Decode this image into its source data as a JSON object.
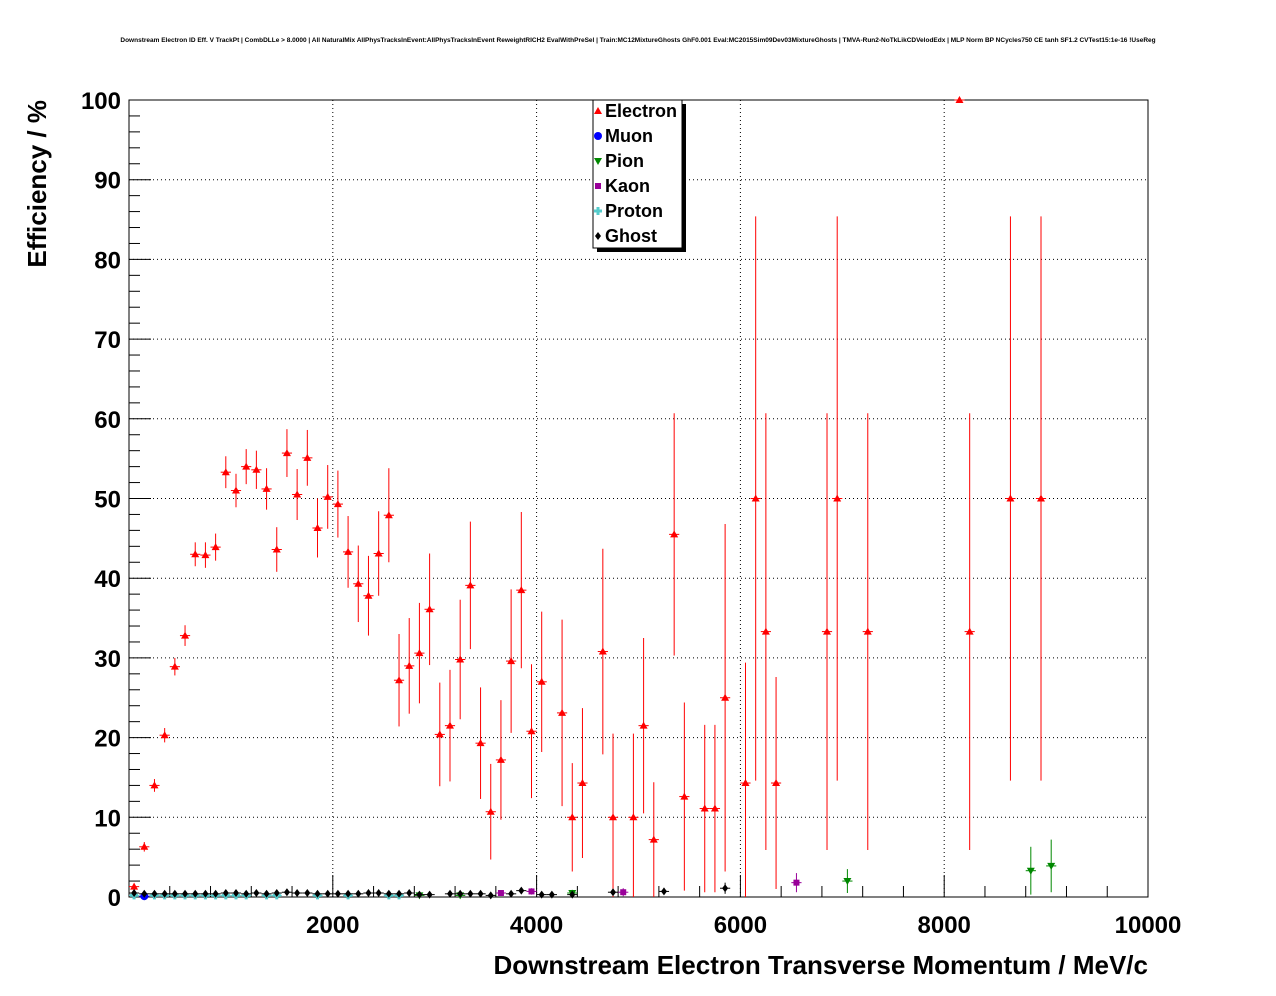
{
  "chart_data": {
    "type": "scatter",
    "title": "Downstream Electron ID Eff. V TrackPt | CombDLLe > 8.0000 | All NaturalMix AllPhysTracksInEvent:AllPhysTracksInEvent ReweightRICH2 EvalWithPreSel | Train:MC12MixtureGhosts GhF0.001 Eval:MC2015Sim09Dev03MixtureGhosts | TMVA-Run2-NoTkLikCDVelodEdx | MLP Norm BP NCycles750 CE tanh SF1.2 CVTest15:1e-16 !UseReg",
    "xlabel": "Downstream Electron Transverse Momentum / MeV/c",
    "ylabel": "Efficiency / %",
    "xlim": [
      0,
      10000
    ],
    "ylim": [
      0,
      100
    ],
    "xticks": [
      2000,
      4000,
      6000,
      8000,
      10000
    ],
    "yticks": [
      0,
      10,
      20,
      30,
      40,
      50,
      60,
      70,
      80,
      90,
      100
    ],
    "grid": true,
    "legend_position": "top-center",
    "series": [
      {
        "name": "Electron",
        "color": "#ff0000",
        "marker": "triangle-up",
        "points": [
          {
            "x": 50,
            "y": 1.3,
            "err": 0.4
          },
          {
            "x": 150,
            "y": 6.3,
            "err": 0.6
          },
          {
            "x": 250,
            "y": 14.0,
            "err": 0.8
          },
          {
            "x": 350,
            "y": 20.3,
            "err": 0.9
          },
          {
            "x": 450,
            "y": 28.9,
            "err": 1.1
          },
          {
            "x": 550,
            "y": 32.8,
            "err": 1.3
          },
          {
            "x": 650,
            "y": 43.0,
            "err": 1.5
          },
          {
            "x": 750,
            "y": 42.9,
            "err": 1.6
          },
          {
            "x": 850,
            "y": 43.9,
            "err": 1.7
          },
          {
            "x": 950,
            "y": 53.3,
            "err": 2.0
          },
          {
            "x": 1050,
            "y": 51.0,
            "err": 2.1
          },
          {
            "x": 1150,
            "y": 54.0,
            "err": 2.2
          },
          {
            "x": 1250,
            "y": 53.6,
            "err": 2.4
          },
          {
            "x": 1350,
            "y": 51.2,
            "err": 2.6
          },
          {
            "x": 1450,
            "y": 43.6,
            "err": 2.8
          },
          {
            "x": 1550,
            "y": 55.7,
            "err": 3.0
          },
          {
            "x": 1650,
            "y": 50.5,
            "err": 3.2
          },
          {
            "x": 1750,
            "y": 55.1,
            "err": 3.5
          },
          {
            "x": 1850,
            "y": 46.3,
            "err": 3.7
          },
          {
            "x": 1950,
            "y": 50.2,
            "err": 4.0
          },
          {
            "x": 2050,
            "y": 49.3,
            "err": 4.2
          },
          {
            "x": 2150,
            "y": 43.3,
            "err": 4.5
          },
          {
            "x": 2250,
            "y": 39.3,
            "err": 4.8
          },
          {
            "x": 2350,
            "y": 37.8,
            "err": 5.0
          },
          {
            "x": 2450,
            "y": 43.1,
            "err": 5.3
          },
          {
            "x": 2550,
            "y": 47.9,
            "err": 5.9
          },
          {
            "x": 2650,
            "y": 27.2,
            "err": 5.8
          },
          {
            "x": 2750,
            "y": 29.0,
            "err": 6.0
          },
          {
            "x": 2850,
            "y": 30.6,
            "err": 6.3
          },
          {
            "x": 2950,
            "y": 36.1,
            "err": 7.0
          },
          {
            "x": 3050,
            "y": 20.4,
            "err": 6.5
          },
          {
            "x": 3150,
            "y": 21.5,
            "err": 7.0
          },
          {
            "x": 3250,
            "y": 29.8,
            "err": 7.5
          },
          {
            "x": 3350,
            "y": 39.1,
            "err": 8.0
          },
          {
            "x": 3450,
            "y": 19.3,
            "err": 7.0
          },
          {
            "x": 3550,
            "y": 10.7,
            "err": 6.0
          },
          {
            "x": 3650,
            "y": 17.2,
            "err": 7.5
          },
          {
            "x": 3750,
            "y": 29.6,
            "err": 9.0
          },
          {
            "x": 3850,
            "y": 38.5,
            "err": 9.8
          },
          {
            "x": 3950,
            "y": 20.8,
            "err": 8.4
          },
          {
            "x": 4050,
            "y": 27.0,
            "err": 8.8
          },
          {
            "x": 4250,
            "y": 23.1,
            "err": 11.7
          },
          {
            "x": 4350,
            "y": 10.0,
            "err": 6.8
          },
          {
            "x": 4450,
            "y": 14.3,
            "err": 9.4
          },
          {
            "x": 4650,
            "y": 30.8,
            "err": 12.9
          },
          {
            "x": 4750,
            "y": 10.0,
            "err": 10.5
          },
          {
            "x": 4950,
            "y": 10.0,
            "err": 10.5
          },
          {
            "x": 5050,
            "y": 21.5,
            "err": 11.0
          },
          {
            "x": 5150,
            "y": 7.2,
            "err": 7.2
          },
          {
            "x": 5350,
            "y": 45.5,
            "err": 15.2
          },
          {
            "x": 5450,
            "y": 12.6,
            "err": 11.8
          },
          {
            "x": 5650,
            "y": 11.1,
            "err": 10.5
          },
          {
            "x": 5750,
            "y": 11.1,
            "err": 10.5
          },
          {
            "x": 5850,
            "y": 25.0,
            "err": 21.8
          },
          {
            "x": 6050,
            "y": 14.3,
            "err": 15.1
          },
          {
            "x": 6150,
            "y": 50.0,
            "err": 35.4
          },
          {
            "x": 6250,
            "y": 33.3,
            "err": 27.4
          },
          {
            "x": 6350,
            "y": 14.3,
            "err": 13.3
          },
          {
            "x": 6850,
            "y": 33.3,
            "err": 27.4
          },
          {
            "x": 6950,
            "y": 50.0,
            "err": 35.4
          },
          {
            "x": 7250,
            "y": 33.3,
            "err": 27.4
          },
          {
            "x": 8150,
            "y": 100.0,
            "err": 0
          },
          {
            "x": 8250,
            "y": 33.3,
            "err": 27.4
          },
          {
            "x": 8650,
            "y": 50.0,
            "err": 35.4
          },
          {
            "x": 8950,
            "y": 50.0,
            "err": 35.4
          }
        ]
      },
      {
        "name": "Muon",
        "color": "#0000ff",
        "marker": "circle",
        "points": [
          {
            "x": 150,
            "y": 0.1,
            "err": 0
          }
        ]
      },
      {
        "name": "Pion",
        "color": "#008800",
        "marker": "triangle-down",
        "points": [
          {
            "x": 2850,
            "y": 0.2,
            "err": 0.2
          },
          {
            "x": 3250,
            "y": 0.2,
            "err": 0.2
          },
          {
            "x": 4350,
            "y": 0.5,
            "err": 0.4
          },
          {
            "x": 7050,
            "y": 2.0,
            "err": 1.5
          },
          {
            "x": 8850,
            "y": 3.3,
            "err": 3.0
          },
          {
            "x": 9050,
            "y": 3.9,
            "err": 3.3
          }
        ]
      },
      {
        "name": "Kaon",
        "color": "#990099",
        "marker": "square",
        "points": [
          {
            "x": 3650,
            "y": 0.5,
            "err": 0.3
          },
          {
            "x": 3950,
            "y": 0.7,
            "err": 0.4
          },
          {
            "x": 4850,
            "y": 0.6,
            "err": 0.5
          },
          {
            "x": 6550,
            "y": 1.8,
            "err": 1.2
          }
        ]
      },
      {
        "name": "Proton",
        "color": "#55cccc",
        "marker": "cross",
        "points": [
          {
            "x": 50,
            "y": 0.2,
            "err": 0
          },
          {
            "x": 250,
            "y": 0.2,
            "err": 0
          },
          {
            "x": 350,
            "y": 0.2,
            "err": 0
          },
          {
            "x": 450,
            "y": 0.2,
            "err": 0
          },
          {
            "x": 550,
            "y": 0.2,
            "err": 0
          },
          {
            "x": 650,
            "y": 0.2,
            "err": 0
          },
          {
            "x": 750,
            "y": 0.2,
            "err": 0
          },
          {
            "x": 850,
            "y": 0.2,
            "err": 0
          },
          {
            "x": 950,
            "y": 0.2,
            "err": 0
          },
          {
            "x": 1050,
            "y": 0.2,
            "err": 0
          },
          {
            "x": 1150,
            "y": 0.2,
            "err": 0
          },
          {
            "x": 1350,
            "y": 0.2,
            "err": 0
          },
          {
            "x": 1450,
            "y": 0.2,
            "err": 0
          },
          {
            "x": 1850,
            "y": 0.2,
            "err": 0
          },
          {
            "x": 2150,
            "y": 0.2,
            "err": 0
          },
          {
            "x": 2550,
            "y": 0.2,
            "err": 0
          },
          {
            "x": 2650,
            "y": 0.2,
            "err": 0
          }
        ]
      },
      {
        "name": "Ghost",
        "color": "#000000",
        "marker": "diamond",
        "points": [
          {
            "x": 50,
            "y": 0.5,
            "err": 0
          },
          {
            "x": 150,
            "y": 0.4,
            "err": 0
          },
          {
            "x": 250,
            "y": 0.4,
            "err": 0
          },
          {
            "x": 350,
            "y": 0.4,
            "err": 0
          },
          {
            "x": 450,
            "y": 0.4,
            "err": 0
          },
          {
            "x": 550,
            "y": 0.4,
            "err": 0
          },
          {
            "x": 650,
            "y": 0.4,
            "err": 0
          },
          {
            "x": 750,
            "y": 0.4,
            "err": 0
          },
          {
            "x": 850,
            "y": 0.4,
            "err": 0
          },
          {
            "x": 950,
            "y": 0.5,
            "err": 0
          },
          {
            "x": 1050,
            "y": 0.5,
            "err": 0
          },
          {
            "x": 1150,
            "y": 0.4,
            "err": 0
          },
          {
            "x": 1250,
            "y": 0.5,
            "err": 0
          },
          {
            "x": 1350,
            "y": 0.4,
            "err": 0
          },
          {
            "x": 1450,
            "y": 0.5,
            "err": 0
          },
          {
            "x": 1550,
            "y": 0.6,
            "err": 0
          },
          {
            "x": 1650,
            "y": 0.5,
            "err": 0
          },
          {
            "x": 1750,
            "y": 0.5,
            "err": 0
          },
          {
            "x": 1850,
            "y": 0.4,
            "err": 0
          },
          {
            "x": 1950,
            "y": 0.4,
            "err": 0
          },
          {
            "x": 2050,
            "y": 0.4,
            "err": 0
          },
          {
            "x": 2150,
            "y": 0.4,
            "err": 0
          },
          {
            "x": 2250,
            "y": 0.4,
            "err": 0
          },
          {
            "x": 2350,
            "y": 0.5,
            "err": 0
          },
          {
            "x": 2450,
            "y": 0.5,
            "err": 0
          },
          {
            "x": 2550,
            "y": 0.4,
            "err": 0
          },
          {
            "x": 2650,
            "y": 0.4,
            "err": 0
          },
          {
            "x": 2750,
            "y": 0.5,
            "err": 0
          },
          {
            "x": 2850,
            "y": 0.3,
            "err": 0
          },
          {
            "x": 2950,
            "y": 0.3,
            "err": 0
          },
          {
            "x": 3150,
            "y": 0.4,
            "err": 0
          },
          {
            "x": 3250,
            "y": 0.4,
            "err": 0
          },
          {
            "x": 3350,
            "y": 0.4,
            "err": 0
          },
          {
            "x": 3450,
            "y": 0.4,
            "err": 0
          },
          {
            "x": 3550,
            "y": 0.2,
            "err": 0
          },
          {
            "x": 3750,
            "y": 0.4,
            "err": 0
          },
          {
            "x": 3850,
            "y": 0.8,
            "err": 0
          },
          {
            "x": 4050,
            "y": 0.3,
            "err": 0
          },
          {
            "x": 4150,
            "y": 0.3,
            "err": 0
          },
          {
            "x": 4350,
            "y": 0.3,
            "err": 0
          },
          {
            "x": 4750,
            "y": 0.6,
            "err": 0
          },
          {
            "x": 5250,
            "y": 0.7,
            "err": 0.4
          },
          {
            "x": 5850,
            "y": 1.1,
            "err": 0.7
          }
        ]
      }
    ]
  }
}
